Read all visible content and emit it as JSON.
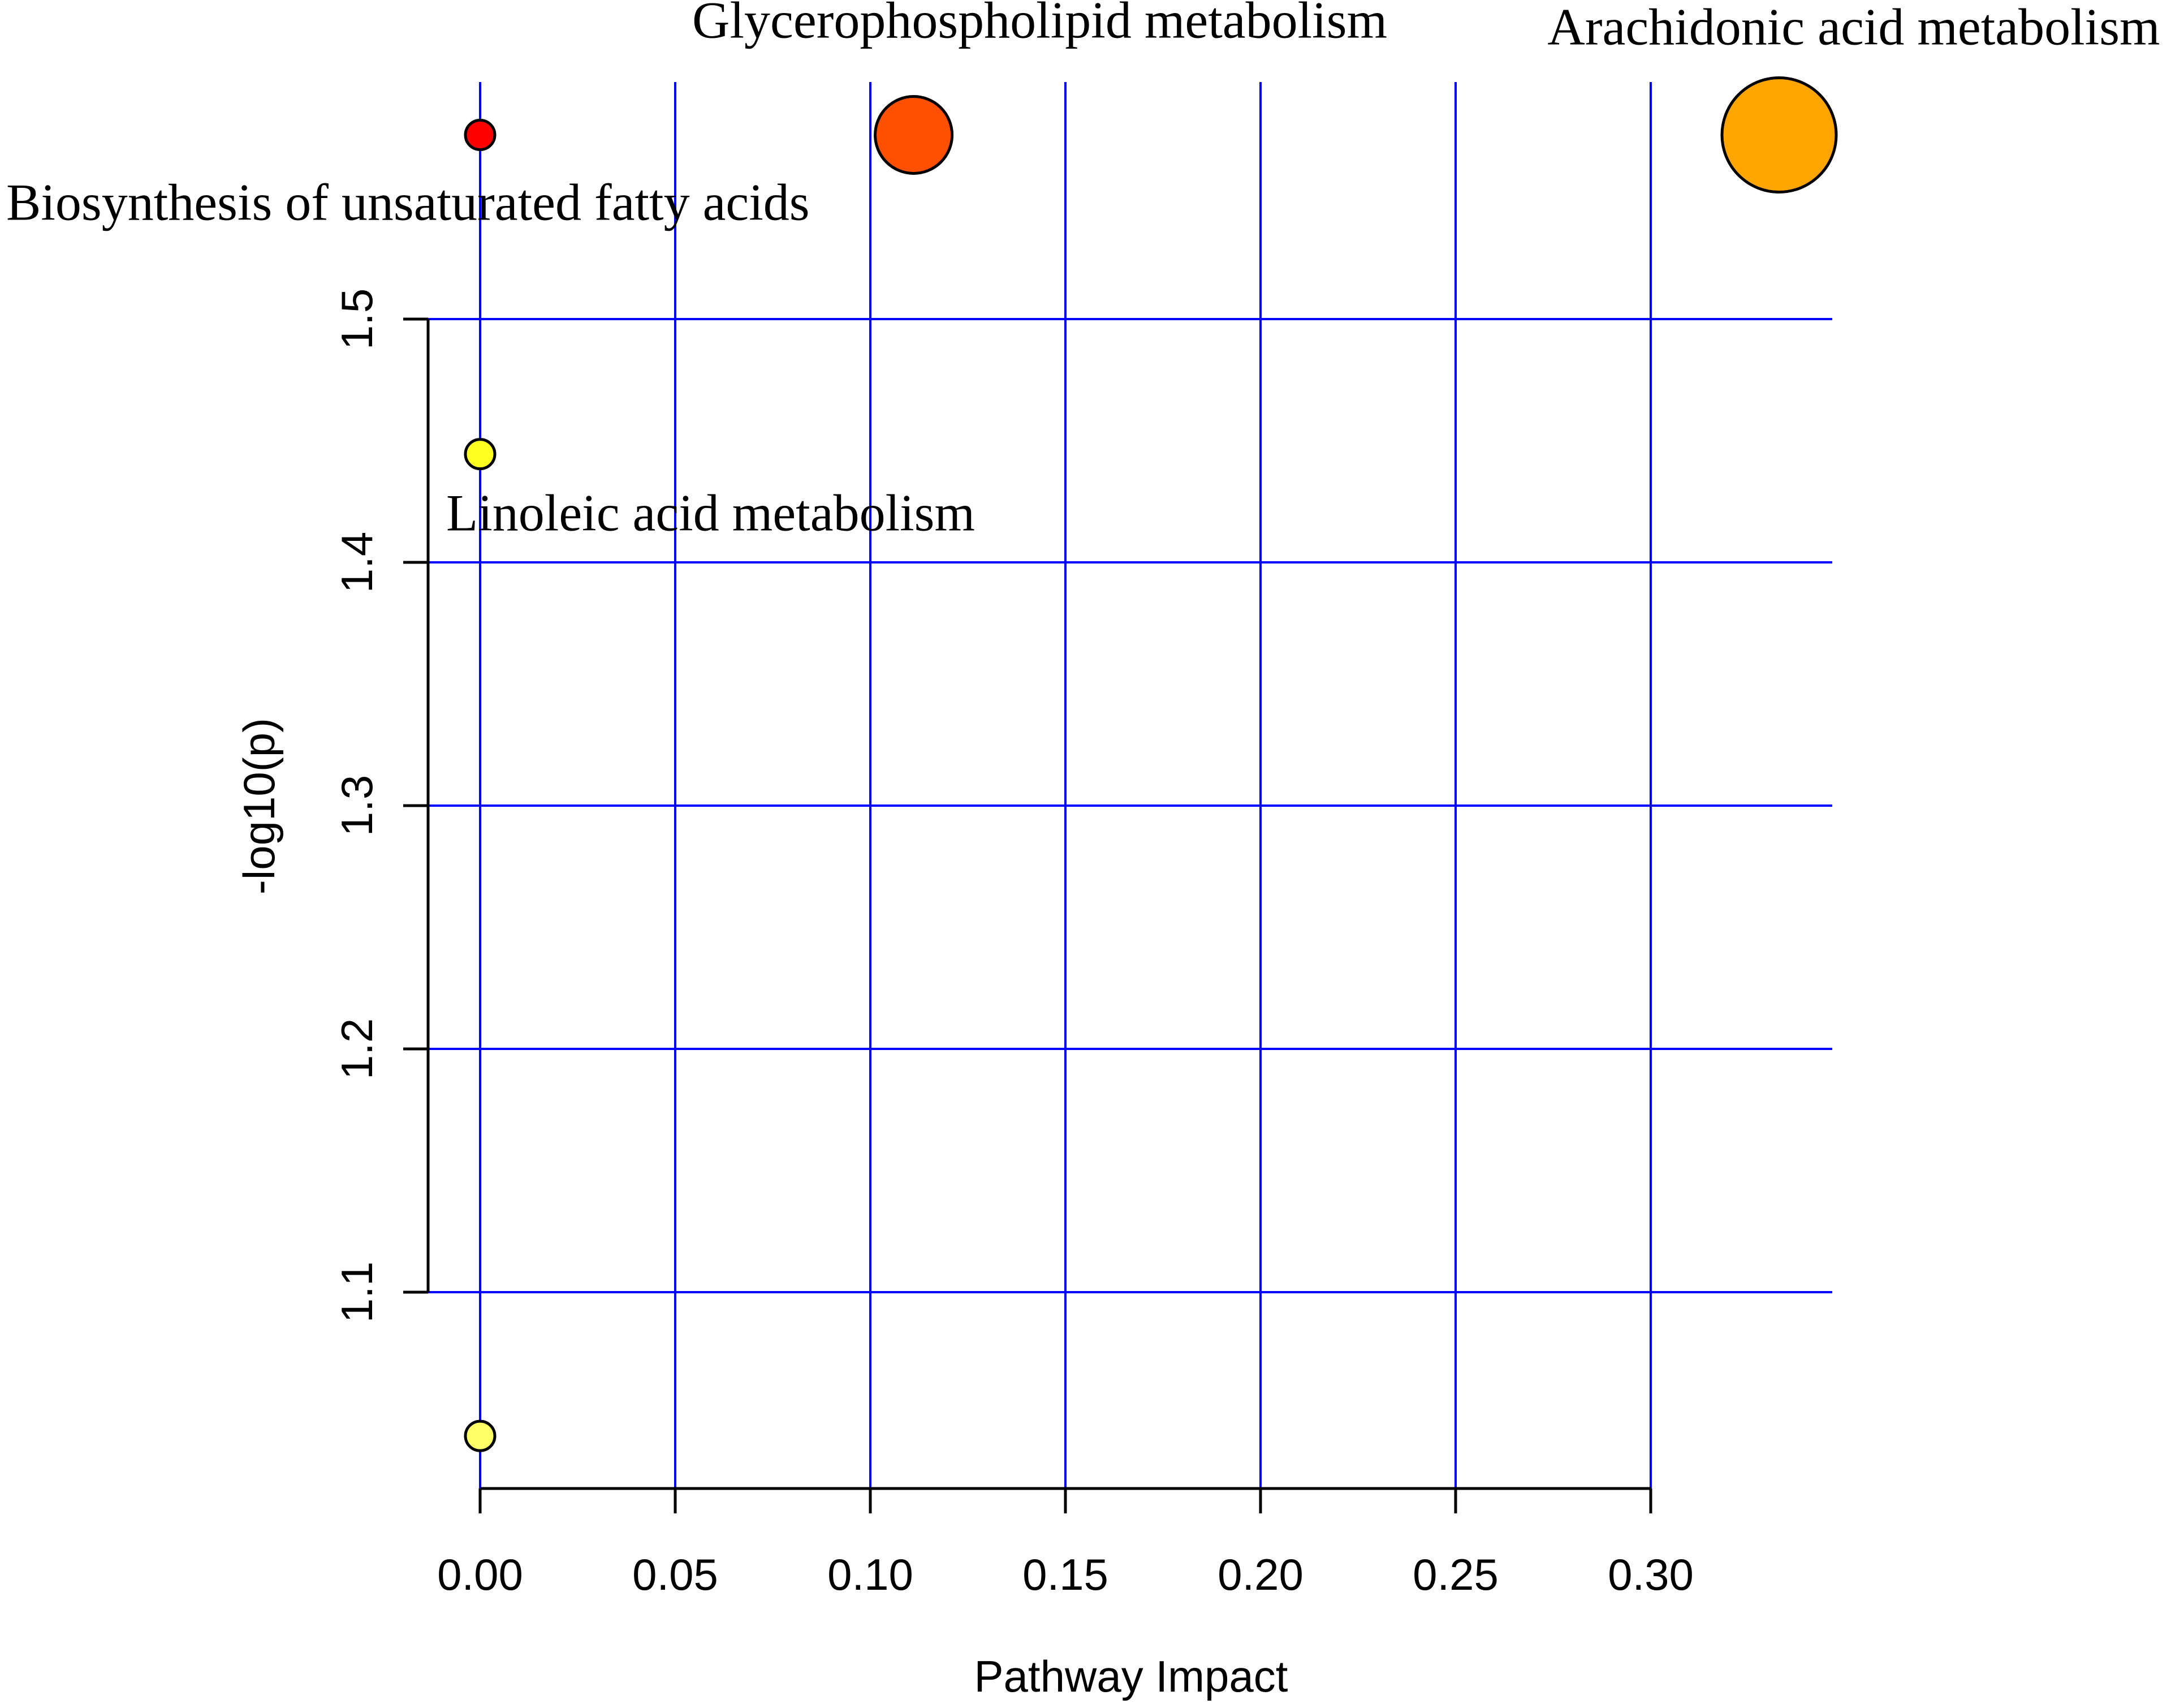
{
  "chart_data": {
    "type": "scatter",
    "xlabel": "Pathway Impact",
    "ylabel": "-log10(p)",
    "xlim": [
      -0.01,
      0.35
    ],
    "ylim": [
      1.02,
      1.61
    ],
    "x_ticks": [
      "0.00",
      "0.05",
      "0.10",
      "0.15",
      "0.20",
      "0.25",
      "0.30"
    ],
    "y_ticks": [
      "1.1",
      "1.2",
      "1.3",
      "1.4",
      "1.5"
    ],
    "grid": true,
    "grid_color": "#0000ff",
    "points": [
      {
        "x": 0.0,
        "y": 1.5757,
        "label": "Biosynthesis of unsaturated fatty acids",
        "color": "#ff0000",
        "size": "small"
      },
      {
        "x": 0.1111,
        "y": 1.5757,
        "label": "Glycerophospholipid metabolism",
        "color": "#ff5000",
        "size": "medium"
      },
      {
        "x": 0.3329,
        "y": 1.5757,
        "label": "Arachidonic acid metabolism",
        "color": "#ffa500",
        "size": "large"
      },
      {
        "x": 0.0,
        "y": 1.4445,
        "label": "Linoleic acid metabolism",
        "color": "#ffff22",
        "size": "small"
      },
      {
        "x": 0.0,
        "y": 1.0409,
        "label": "",
        "color": "#ffff66",
        "size": "small"
      }
    ]
  }
}
